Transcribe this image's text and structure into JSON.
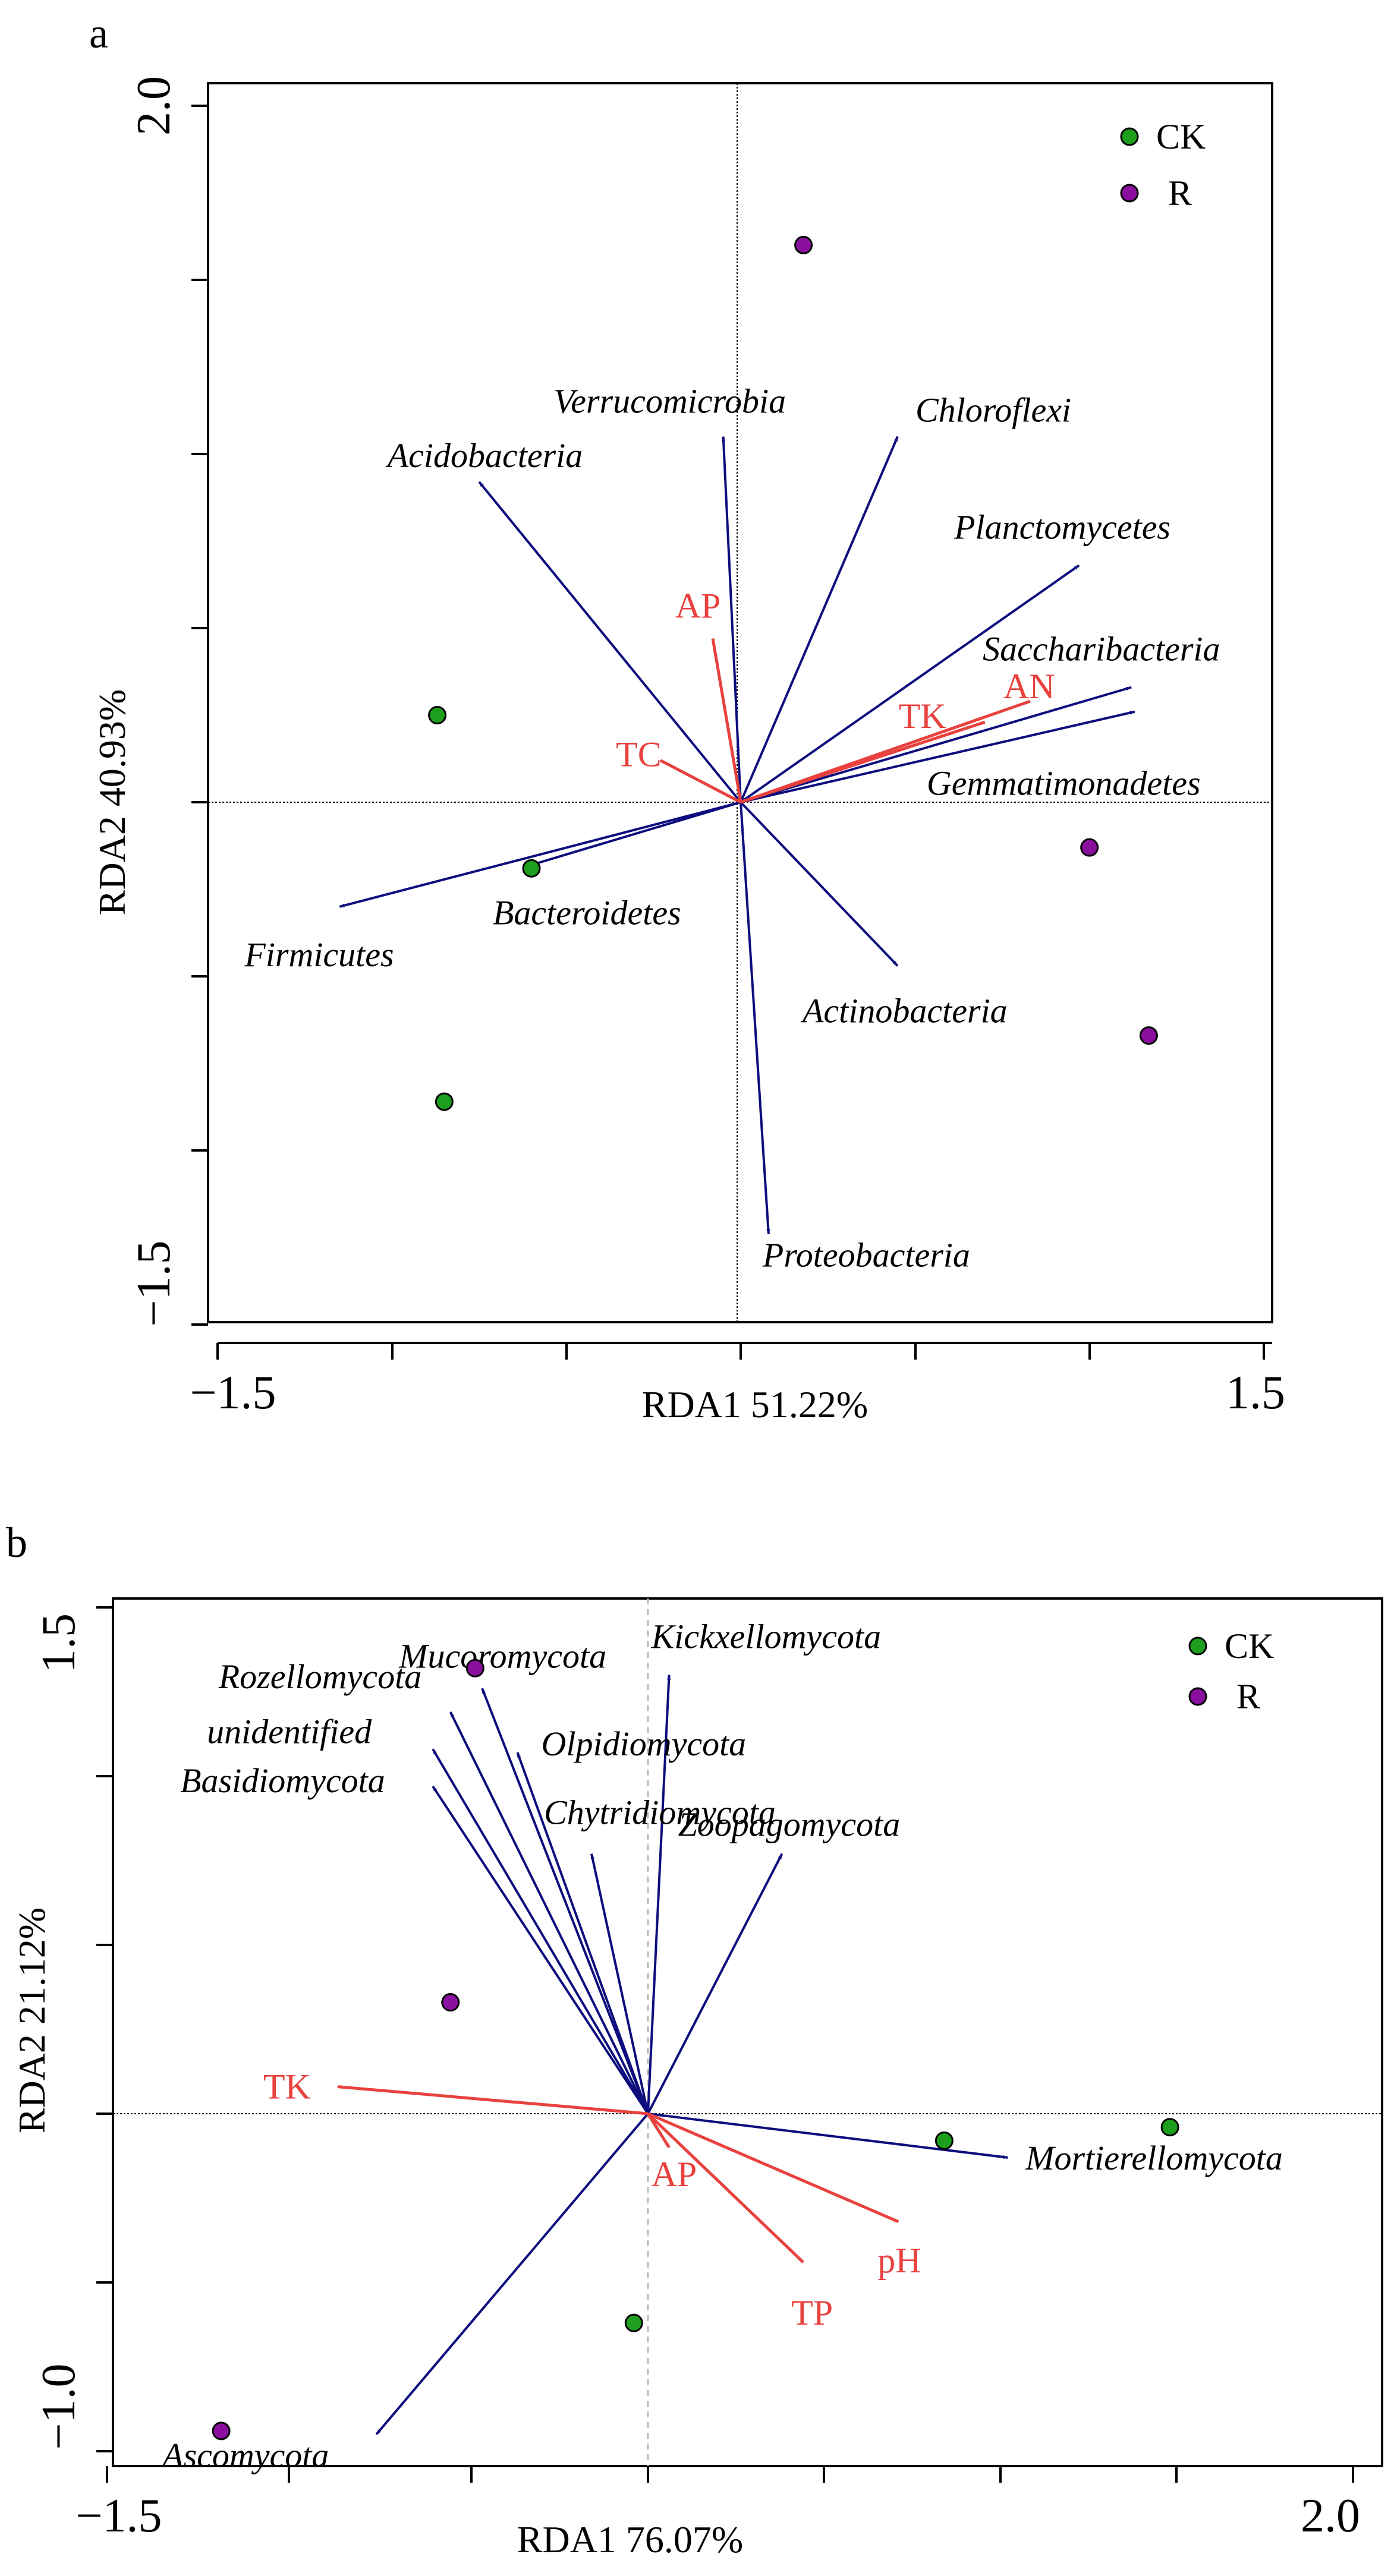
{
  "colors": {
    "species_arrow": "#0d0d7e",
    "env_arrow": "#e8413e",
    "group_CK": "#1d9e1d",
    "group_R": "#8b0f9f",
    "zero_line_b": "#b8b8b8"
  },
  "chart_data": [
    {
      "type": "scatter",
      "panel_letter": "a",
      "xlabel": "RDA1 51.22%",
      "ylabel": "RDA2 40.93%",
      "xlim": [
        -1.5,
        1.5
      ],
      "ylim": [
        -1.5,
        2.0
      ],
      "x_tick_labels": [
        "−1.5",
        "1.5"
      ],
      "y_tick_labels": [
        "−1.5",
        "2.0"
      ],
      "grid": false,
      "legend_placement": "top-right",
      "legend": [
        {
          "label": "CK",
          "color": "#1d9e1d"
        },
        {
          "label": "R",
          "color": "#8b0f9f"
        }
      ],
      "series": [
        {
          "name": "CK",
          "points": [
            [
              -0.87,
              0.25
            ],
            [
              -0.6,
              -0.19
            ],
            [
              -0.85,
              -0.86
            ]
          ]
        },
        {
          "name": "R",
          "points": [
            [
              0.18,
              1.6
            ],
            [
              1.0,
              -0.13
            ],
            [
              1.17,
              -0.67
            ]
          ]
        }
      ],
      "species_arrows": [
        {
          "label": "Verrucomicrobia",
          "x": -0.05,
          "y": 1.05
        },
        {
          "label": "Chloroflexi",
          "x": 0.45,
          "y": 1.05
        },
        {
          "label": "Acidobacteria",
          "x": -0.75,
          "y": 0.92
        },
        {
          "label": "Planctomycetes",
          "x": 0.97,
          "y": 0.68
        },
        {
          "label": "Saccharibacteria",
          "x": 1.12,
          "y": 0.33
        },
        {
          "label": "Gemmatimonadetes",
          "x": 1.13,
          "y": 0.26
        },
        {
          "label": "Firmicutes",
          "x": -1.15,
          "y": -0.3
        },
        {
          "label": "Bacteroidetes",
          "x": -0.6,
          "y": -0.18
        },
        {
          "label": "Actinobacteria",
          "x": 0.45,
          "y": -0.47
        },
        {
          "label": "Proteobacteria",
          "x": 0.08,
          "y": -1.24
        }
      ],
      "env_arrows": [
        {
          "label": "AP",
          "x": -0.08,
          "y": 0.47
        },
        {
          "label": "TC",
          "x": -0.23,
          "y": 0.12
        },
        {
          "label": "TK",
          "x": 0.7,
          "y": 0.23
        },
        {
          "label": "AN",
          "x": 0.83,
          "y": 0.29
        }
      ]
    },
    {
      "type": "scatter",
      "panel_letter": "b",
      "xlabel": "RDA1 76.07%",
      "ylabel": "RDA2 21.12%",
      "xlim": [
        -1.5,
        2.0
      ],
      "ylim": [
        -1.0,
        1.5
      ],
      "x_tick_labels": [
        "−1.5",
        "2.0"
      ],
      "y_tick_labels": [
        "−1.0",
        "1.5"
      ],
      "grid": false,
      "legend_placement": "top-right",
      "legend": [
        {
          "label": "CK",
          "color": "#1d9e1d"
        },
        {
          "label": "R",
          "color": "#8b0f9f"
        }
      ],
      "series": [
        {
          "name": "CK",
          "points": [
            [
              0.84,
              -0.08
            ],
            [
              1.48,
              -0.04
            ],
            [
              -0.04,
              -0.62
            ]
          ]
        },
        {
          "name": "R",
          "points": [
            [
              -0.49,
              1.32
            ],
            [
              -0.56,
              0.33
            ],
            [
              -1.21,
              -0.94
            ]
          ]
        }
      ],
      "species_arrows": [
        {
          "label": "Kickxellomycota",
          "x": 0.06,
          "y": 1.3
        },
        {
          "label": "Mucoromycota",
          "x": -0.47,
          "y": 1.26
        },
        {
          "label": "Rozellomycota",
          "x": -0.56,
          "y": 1.19
        },
        {
          "label": "Olpidiomycota",
          "x": -0.37,
          "y": 1.07
        },
        {
          "label": "unidentified",
          "x": -0.61,
          "y": 1.08
        },
        {
          "label": "Basidiomycota",
          "x": -0.61,
          "y": 0.97
        },
        {
          "label": "Chytridiomycota",
          "x": -0.16,
          "y": 0.77
        },
        {
          "label": "Zoopagomycota",
          "x": 0.38,
          "y": 0.77
        },
        {
          "label": "Mortierellomycota",
          "x": 1.02,
          "y": -0.13
        },
        {
          "label": "Ascomycota",
          "x": -0.77,
          "y": -0.95
        }
      ],
      "env_arrows": [
        {
          "label": "TK",
          "x": -0.88,
          "y": 0.08
        },
        {
          "label": "AP",
          "x": 0.06,
          "y": -0.1
        },
        {
          "label": "pH",
          "x": 0.71,
          "y": -0.32
        },
        {
          "label": "TP",
          "x": 0.44,
          "y": -0.44
        }
      ]
    }
  ]
}
